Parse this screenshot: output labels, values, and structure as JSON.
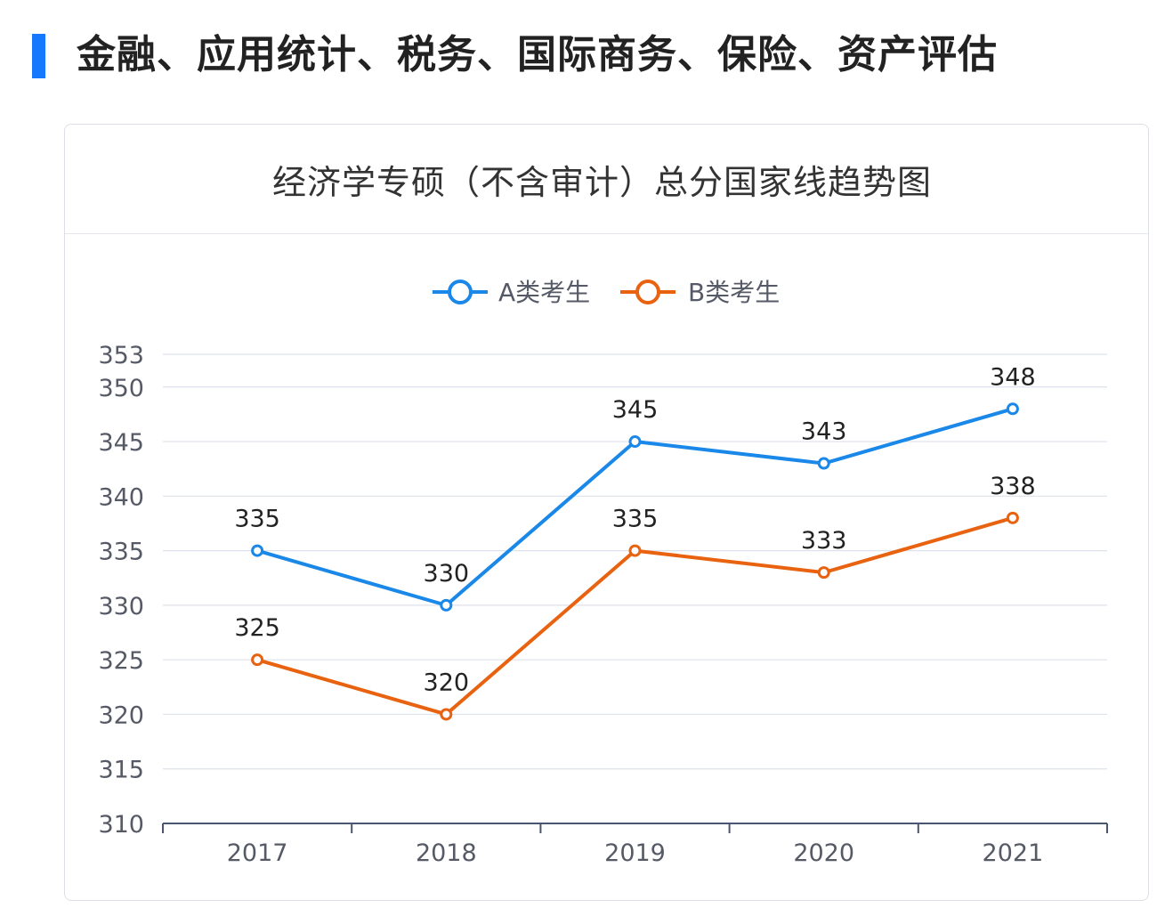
{
  "section": {
    "title": "金融、应用统计、税务、国际商务、保险、资产评估"
  },
  "card": {
    "title": "经济学专硕（不含审计）总分国家线趋势图"
  },
  "chart_data": {
    "type": "line",
    "title": "经济学专硕（不含审计）总分国家线趋势图",
    "categories": [
      "2017",
      "2018",
      "2019",
      "2020",
      "2021"
    ],
    "series": [
      {
        "name": "A类考生",
        "color": "#1a88e8",
        "values": [
          335,
          330,
          345,
          343,
          348
        ]
      },
      {
        "name": "B类考生",
        "color": "#e8620f",
        "values": [
          325,
          320,
          335,
          333,
          338
        ]
      }
    ],
    "yticks": [
      310,
      315,
      320,
      325,
      330,
      335,
      340,
      345,
      350,
      353
    ],
    "ylim": [
      310,
      353
    ],
    "xlabel": "",
    "ylabel": "",
    "grid": true,
    "legend": "top-center",
    "data_labels": true
  }
}
